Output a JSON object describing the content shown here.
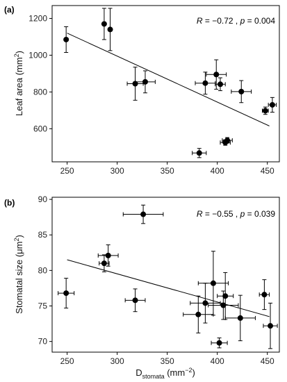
{
  "chart_data": [
    {
      "type": "scatter",
      "panel_label": "(a)",
      "ylabel_main": "Leaf area (mm",
      "ylabel_sup": "2",
      "ylabel_end": ")",
      "stat_r": "R",
      "stat_rest_1": " = −0.72 , ",
      "stat_p": "p",
      "stat_rest_2": " = 0.004",
      "xlim": [
        235,
        462
      ],
      "ylim": [
        420,
        1270
      ],
      "xticks": [
        250,
        300,
        350,
        400,
        450
      ],
      "yticks": [
        600,
        800,
        1000,
        1200
      ],
      "show_xtick_labels": true,
      "grid": false,
      "fit_line": {
        "x": [
          250,
          452
        ],
        "y": [
          1120,
          615
        ]
      },
      "points": [
        {
          "x": 249,
          "y": 1085,
          "xerr": 0,
          "yerr": 70
        },
        {
          "x": 287,
          "y": 1170,
          "xerr": 0,
          "yerr": 85
        },
        {
          "x": 293,
          "y": 1140,
          "xerr": 0,
          "yerr": 115
        },
        {
          "x": 318,
          "y": 845,
          "xerr": 8,
          "yerr": 90
        },
        {
          "x": 328,
          "y": 855,
          "xerr": 10,
          "yerr": 60
        },
        {
          "x": 382,
          "y": 468,
          "xerr": 7,
          "yerr": 25
        },
        {
          "x": 388,
          "y": 848,
          "xerr": 10,
          "yerr": 60
        },
        {
          "x": 399,
          "y": 895,
          "xerr": 10,
          "yerr": 80
        },
        {
          "x": 403,
          "y": 842,
          "xerr": 5,
          "yerr": 35
        },
        {
          "x": 408,
          "y": 525,
          "xerr": 5,
          "yerr": 15
        },
        {
          "x": 410,
          "y": 537,
          "xerr": 5,
          "yerr": 15
        },
        {
          "x": 424,
          "y": 802,
          "xerr": 10,
          "yerr": 60
        },
        {
          "x": 448,
          "y": 698,
          "xerr": 3,
          "yerr": 20
        },
        {
          "x": 455,
          "y": 730,
          "xerr": 4,
          "yerr": 40
        }
      ]
    },
    {
      "type": "scatter",
      "panel_label": "(b)",
      "ylabel_main": "Stomatal size (μm",
      "ylabel_sup": "2",
      "ylabel_end": ")",
      "xlabel_main": "D",
      "xlabel_sub": "stomata",
      "xlabel_mid": " (mm",
      "xlabel_sup": "−2",
      "xlabel_end": ")",
      "stat_r": "R",
      "stat_rest_1": " = −0.55 , ",
      "stat_p": "p",
      "stat_rest_2": " = 0.039",
      "xlim": [
        235,
        462
      ],
      "ylim": [
        68.5,
        90.3
      ],
      "xticks": [
        250,
        300,
        350,
        400,
        450
      ],
      "xtick_labels": [
        "250",
        "300",
        "350",
        "400",
        "450"
      ],
      "yticks": [
        70,
        75,
        80,
        85,
        90
      ],
      "grid": false,
      "fit_line": {
        "x": [
          250,
          452
        ],
        "y": [
          81.5,
          73.5
        ]
      },
      "points": [
        {
          "x": 249,
          "y": 76.8,
          "xerr": 8,
          "yerr": 2.1
        },
        {
          "x": 287,
          "y": 81.0,
          "xerr": 5,
          "yerr": 1.2
        },
        {
          "x": 291,
          "y": 82.1,
          "xerr": 10,
          "yerr": 1.5
        },
        {
          "x": 318,
          "y": 75.8,
          "xerr": 10,
          "yerr": 1.6
        },
        {
          "x": 326,
          "y": 87.9,
          "xerr": 20,
          "yerr": 1.3
        },
        {
          "x": 381,
          "y": 73.8,
          "xerr": 15,
          "yerr": 2.6
        },
        {
          "x": 388,
          "y": 75.4,
          "xerr": 15,
          "yerr": 2.8
        },
        {
          "x": 396,
          "y": 78.2,
          "xerr": 15,
          "yerr": 4.5
        },
        {
          "x": 402,
          "y": 69.8,
          "xerr": 8,
          "yerr": 0.7
        },
        {
          "x": 406,
          "y": 75.1,
          "xerr": 15,
          "yerr": 2.0
        },
        {
          "x": 408,
          "y": 76.4,
          "xerr": 8,
          "yerr": 3.3
        },
        {
          "x": 423,
          "y": 73.3,
          "xerr": 15,
          "yerr": 3.2
        },
        {
          "x": 447,
          "y": 76.6,
          "xerr": 5,
          "yerr": 2.1
        },
        {
          "x": 453,
          "y": 72.2,
          "xerr": 7,
          "yerr": 3.2
        }
      ]
    }
  ]
}
